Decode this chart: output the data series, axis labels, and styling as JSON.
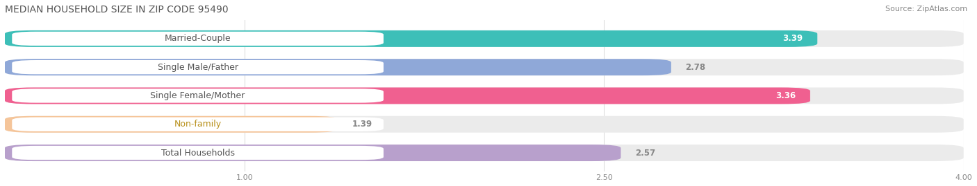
{
  "title": "MEDIAN HOUSEHOLD SIZE IN ZIP CODE 95490",
  "source": "Source: ZipAtlas.com",
  "categories": [
    "Married-Couple",
    "Single Male/Father",
    "Single Female/Mother",
    "Non-family",
    "Total Households"
  ],
  "values": [
    3.39,
    2.78,
    3.36,
    1.39,
    2.57
  ],
  "bar_colors": [
    "#3dbfb8",
    "#8fa8d8",
    "#f06090",
    "#f5c59a",
    "#b8a0cc"
  ],
  "label_text_colors": [
    "#555555",
    "#555555",
    "#555555",
    "#b8901a",
    "#555555"
  ],
  "value_inside_color": "#ffffff",
  "value_outside_color": "#888888",
  "xlim": [
    0,
    4.0
  ],
  "xticks": [
    1.0,
    2.5,
    4.0
  ],
  "background_color": "#ffffff",
  "bar_bg_color": "#ebebeb",
  "title_fontsize": 10,
  "source_fontsize": 8,
  "label_fontsize": 9,
  "value_fontsize": 8.5,
  "bar_height": 0.58,
  "value_threshold": 2.8
}
